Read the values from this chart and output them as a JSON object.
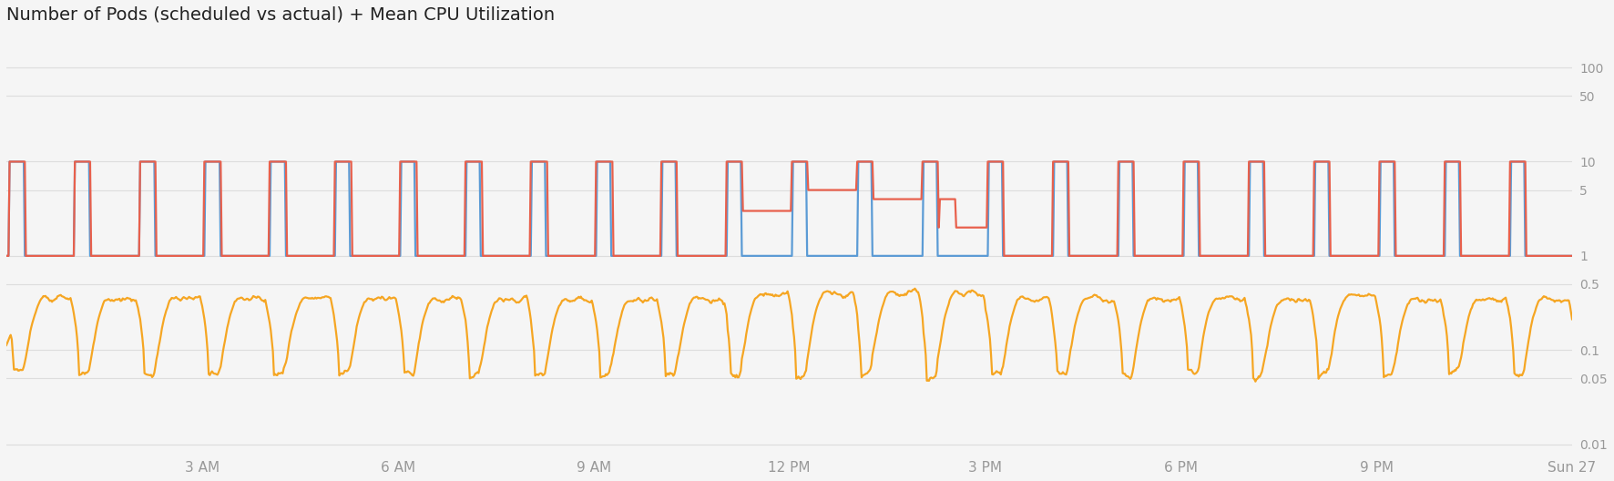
{
  "title": "Number of Pods (scheduled vs actual) + Mean CPU Utilization",
  "title_fontsize": 14,
  "background_color": "#f5f5f5",
  "plot_background_color": "#f5f5f5",
  "x_tick_labels": [
    "",
    "3 AM",
    "6 AM",
    "9 AM",
    "12 PM",
    "3 PM",
    "6 PM",
    "9 PM",
    "Sun 27"
  ],
  "x_tick_positions": [
    0,
    3,
    6,
    9,
    12,
    15,
    18,
    21,
    24
  ],
  "y_ticks": [
    0.01,
    0.05,
    0.1,
    0.5,
    1,
    5,
    10,
    50,
    100
  ],
  "y_tick_labels": [
    "0.01",
    "0.05",
    "0.1",
    "0.5",
    "1",
    "5",
    "10",
    "50",
    "100"
  ],
  "grid_color": "#dddddd",
  "tick_color": "#999999",
  "blue_color": "#5b9bd5",
  "red_color": "#e8604c",
  "orange_color": "#f5a623",
  "line_width": 1.6,
  "ylim_low": 0.008,
  "ylim_high": 220
}
